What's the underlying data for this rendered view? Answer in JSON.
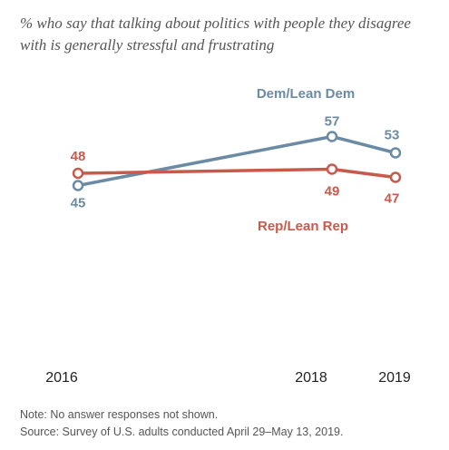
{
  "chart_data": {
    "type": "line",
    "subtitle": "% who say that talking about politics with people they disagree with is generally stressful and frustrating",
    "x": [
      "2016",
      "2018",
      "2019"
    ],
    "x_numeric": [
      2016.5,
      2018.5,
      2019.0
    ],
    "tick_labels": [
      "2016",
      "2018",
      "2019"
    ],
    "series": [
      {
        "name": "Dem/Lean Dem",
        "values": [
          45,
          57,
          53
        ],
        "value_labels": [
          "45",
          "57",
          "53"
        ],
        "color": "#6b8ba4"
      },
      {
        "name": "Rep/Lean Rep",
        "values": [
          48,
          49,
          47
        ],
        "value_labels": [
          "48",
          "49",
          "47"
        ],
        "color": "#c85a4c"
      }
    ],
    "xlabel": "",
    "ylabel": "",
    "grid": false,
    "legend": "inline labels"
  },
  "notes": {
    "note": "Note: No answer responses not shown.",
    "source": "Source: Survey of U.S. adults conducted April 29–May 13, 2019."
  }
}
